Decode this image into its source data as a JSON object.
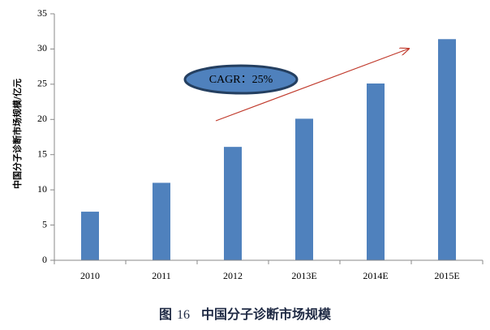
{
  "chart_data": {
    "type": "bar",
    "title": "",
    "xlabel": "",
    "ylabel": "中国分子诊断市场规模/亿元",
    "categories": [
      "2010",
      "2011",
      "2012",
      "2013E",
      "2014E",
      "2015E"
    ],
    "values": [
      6.9,
      11.0,
      16.1,
      20.1,
      25.1,
      31.4
    ],
    "ylim": [
      0,
      35
    ],
    "yticks": [
      "0",
      "5",
      "10",
      "15",
      "20",
      "25",
      "30",
      "35"
    ],
    "bar_color": "#4f81bd",
    "grid": false,
    "legend": "none",
    "annotation": {
      "text": "CAGR：25%",
      "fill": "#4f81bd",
      "stroke": "#243f60"
    },
    "arrow_color": "#c0392b"
  },
  "caption": {
    "prefix": "图",
    "number": "16",
    "text": "中国分子诊断市场规模"
  }
}
